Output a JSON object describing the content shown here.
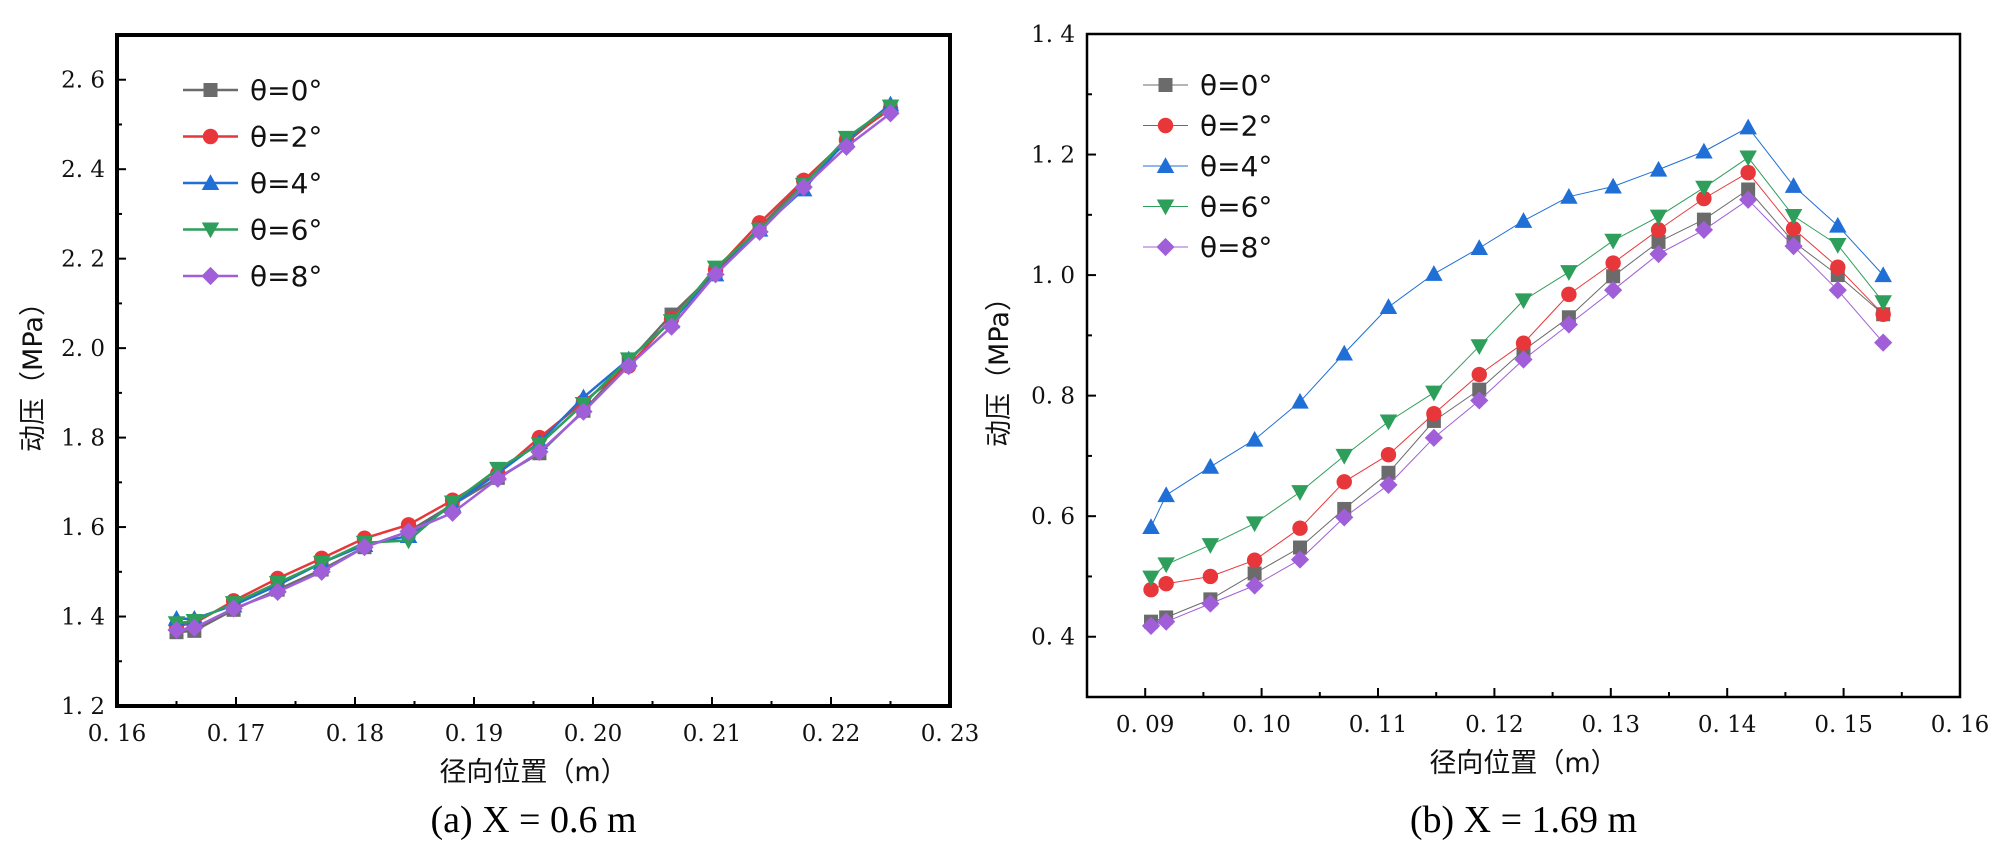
{
  "chart_data": [
    {
      "type": "line",
      "caption": "(a) X = 0.6 m",
      "xlabel": "径向位置（m）",
      "ylabel": "动压（MPa）",
      "xlim": [
        0.16,
        0.23
      ],
      "ylim": [
        1.2,
        2.7
      ],
      "xticks": [
        "0. 16",
        "0. 17",
        "0. 18",
        "0. 19",
        "0. 20",
        "0. 21",
        "0. 22",
        "0. 23"
      ],
      "xtick_values": [
        0.16,
        0.17,
        0.18,
        0.19,
        0.2,
        0.21,
        0.22,
        0.23
      ],
      "yticks": [
        "1. 2",
        "1. 4",
        "1. 6",
        "1. 8",
        "2. 0",
        "2. 2",
        "2. 4",
        "2. 6"
      ],
      "ytick_values": [
        1.2,
        1.4,
        1.6,
        1.8,
        2.0,
        2.2,
        2.4,
        2.6
      ],
      "legend_position": "top-left",
      "series": [
        {
          "name": "θ=0°",
          "color": "#6b6b6b",
          "marker": "square",
          "x": [
            0.165,
            0.1665,
            0.1698,
            0.1735,
            0.1772,
            0.1808,
            0.1845,
            0.1882,
            0.192,
            0.1955,
            0.1992,
            0.203,
            0.2066,
            0.2103,
            0.214,
            0.2177,
            0.2213,
            0.225
          ],
          "y": [
            1.365,
            1.368,
            1.415,
            1.46,
            1.505,
            1.555,
            1.59,
            1.65,
            1.71,
            1.765,
            1.86,
            1.97,
            2.075,
            2.17,
            2.27,
            2.37,
            2.46,
            2.54
          ]
        },
        {
          "name": "θ=2°",
          "color": "#e8373a",
          "marker": "circle",
          "x": [
            0.165,
            0.1665,
            0.1698,
            0.1735,
            0.1772,
            0.1808,
            0.1845,
            0.1882,
            0.192,
            0.1955,
            0.1992,
            0.203,
            0.2066,
            0.2103,
            0.214,
            0.2177,
            0.2213,
            0.225
          ],
          "y": [
            1.38,
            1.385,
            1.435,
            1.485,
            1.53,
            1.575,
            1.605,
            1.66,
            1.72,
            1.8,
            1.88,
            1.96,
            2.065,
            2.175,
            2.28,
            2.375,
            2.465,
            2.535
          ]
        },
        {
          "name": "θ=4°",
          "color": "#1f6fd6",
          "marker": "triangle-up",
          "x": [
            0.165,
            0.1665,
            0.1698,
            0.1735,
            0.1772,
            0.1808,
            0.1845,
            0.1882,
            0.192,
            0.1955,
            0.1992,
            0.203,
            0.2066,
            0.2103,
            0.214,
            0.2177,
            0.2213,
            0.225
          ],
          "y": [
            1.395,
            1.395,
            1.425,
            1.47,
            1.52,
            1.56,
            1.58,
            1.65,
            1.72,
            1.79,
            1.89,
            1.975,
            2.06,
            2.165,
            2.265,
            2.355,
            2.465,
            2.545
          ]
        },
        {
          "name": "θ=6°",
          "color": "#2e9e5b",
          "marker": "triangle-down",
          "x": [
            0.165,
            0.1665,
            0.1698,
            0.1735,
            0.1772,
            0.1808,
            0.1845,
            0.1882,
            0.192,
            0.1955,
            0.1992,
            0.203,
            0.2066,
            0.2103,
            0.214,
            0.2177,
            0.2213,
            0.225
          ],
          "y": [
            1.385,
            1.39,
            1.43,
            1.475,
            1.52,
            1.565,
            1.57,
            1.655,
            1.73,
            1.785,
            1.875,
            1.975,
            2.06,
            2.18,
            2.265,
            2.365,
            2.47,
            2.54
          ]
        },
        {
          "name": "θ=8°",
          "color": "#a05fd8",
          "marker": "diamond",
          "x": [
            0.165,
            0.1665,
            0.1698,
            0.1735,
            0.1772,
            0.1808,
            0.1845,
            0.1882,
            0.192,
            0.1955,
            0.1992,
            0.203,
            0.2066,
            0.2103,
            0.214,
            0.2177,
            0.2213,
            0.225
          ],
          "y": [
            1.37,
            1.375,
            1.418,
            1.455,
            1.5,
            1.555,
            1.59,
            1.632,
            1.708,
            1.768,
            1.858,
            1.96,
            2.048,
            2.165,
            2.26,
            2.36,
            2.45,
            2.525
          ]
        }
      ]
    },
    {
      "type": "line",
      "caption": "(b) X = 1.69 m",
      "xlabel": "径向位置（m）",
      "ylabel": "动压（MPa）",
      "xlim": [
        0.085,
        0.16
      ],
      "ylim": [
        0.3,
        1.4
      ],
      "xticks": [
        "0. 09",
        "0. 10",
        "0. 11",
        "0. 12",
        "0. 13",
        "0. 14",
        "0. 15",
        "0. 16"
      ],
      "xtick_values": [
        0.09,
        0.1,
        0.11,
        0.12,
        0.13,
        0.14,
        0.15,
        0.16
      ],
      "yticks": [
        "0. 4",
        "0. 6",
        "0. 8",
        "1. 0",
        "1. 2",
        "1. 4"
      ],
      "ytick_values": [
        0.4,
        0.6,
        0.8,
        1.0,
        1.2,
        1.4
      ],
      "legend_position": "top-left",
      "series": [
        {
          "name": "θ=0°",
          "color": "#6b6b6b",
          "marker": "square",
          "x": [
            0.0905,
            0.0918,
            0.0956,
            0.0994,
            0.1033,
            0.1071,
            0.1109,
            0.1148,
            0.1187,
            0.1225,
            0.1264,
            0.1302,
            0.1341,
            0.138,
            0.1418,
            0.1457,
            0.1495,
            0.1534
          ],
          "y": [
            0.425,
            0.432,
            0.462,
            0.505,
            0.548,
            0.612,
            0.672,
            0.758,
            0.81,
            0.875,
            0.93,
            0.998,
            1.055,
            1.092,
            1.142,
            1.055,
            1.0,
            0.935
          ]
        },
        {
          "name": "θ=2°",
          "color": "#e8373a",
          "marker": "circle",
          "x": [
            0.0905,
            0.0918,
            0.0956,
            0.0994,
            0.1033,
            0.1071,
            0.1109,
            0.1148,
            0.1187,
            0.1225,
            0.1264,
            0.1302,
            0.1341,
            0.138,
            0.1418,
            0.1457,
            0.1495,
            0.1534
          ],
          "y": [
            0.478,
            0.488,
            0.5,
            0.527,
            0.58,
            0.657,
            0.702,
            0.77,
            0.835,
            0.887,
            0.968,
            1.02,
            1.075,
            1.127,
            1.17,
            1.077,
            1.013,
            0.935
          ]
        },
        {
          "name": "θ=4°",
          "color": "#1f6fd6",
          "marker": "triangle-up",
          "x": [
            0.0905,
            0.0918,
            0.0956,
            0.0994,
            0.1033,
            0.1071,
            0.1109,
            0.1148,
            0.1187,
            0.1225,
            0.1264,
            0.1302,
            0.1341,
            0.138,
            0.1418,
            0.1457,
            0.1495,
            0.1534
          ],
          "y": [
            0.582,
            0.635,
            0.682,
            0.727,
            0.79,
            0.87,
            0.947,
            1.002,
            1.045,
            1.09,
            1.13,
            1.147,
            1.175,
            1.205,
            1.245,
            1.148,
            1.082,
            1.0
          ]
        },
        {
          "name": "θ=6°",
          "color": "#2e9e5b",
          "marker": "triangle-down",
          "x": [
            0.0905,
            0.0918,
            0.0956,
            0.0994,
            0.1033,
            0.1071,
            0.1109,
            0.1148,
            0.1187,
            0.1225,
            0.1264,
            0.1302,
            0.1341,
            0.138,
            0.1418,
            0.1457,
            0.1495,
            0.1534
          ],
          "y": [
            0.498,
            0.52,
            0.552,
            0.588,
            0.64,
            0.7,
            0.757,
            0.805,
            0.882,
            0.958,
            1.005,
            1.057,
            1.097,
            1.145,
            1.195,
            1.098,
            1.05,
            0.955
          ]
        },
        {
          "name": "θ=8°",
          "color": "#a05fd8",
          "marker": "diamond",
          "x": [
            0.0905,
            0.0918,
            0.0956,
            0.0994,
            0.1033,
            0.1071,
            0.1109,
            0.1148,
            0.1187,
            0.1225,
            0.1264,
            0.1302,
            0.1341,
            0.138,
            0.1418,
            0.1457,
            0.1495,
            0.1534
          ],
          "y": [
            0.418,
            0.425,
            0.455,
            0.485,
            0.528,
            0.598,
            0.652,
            0.73,
            0.792,
            0.86,
            0.918,
            0.975,
            1.035,
            1.075,
            1.125,
            1.048,
            0.975,
            0.888
          ]
        }
      ]
    }
  ]
}
